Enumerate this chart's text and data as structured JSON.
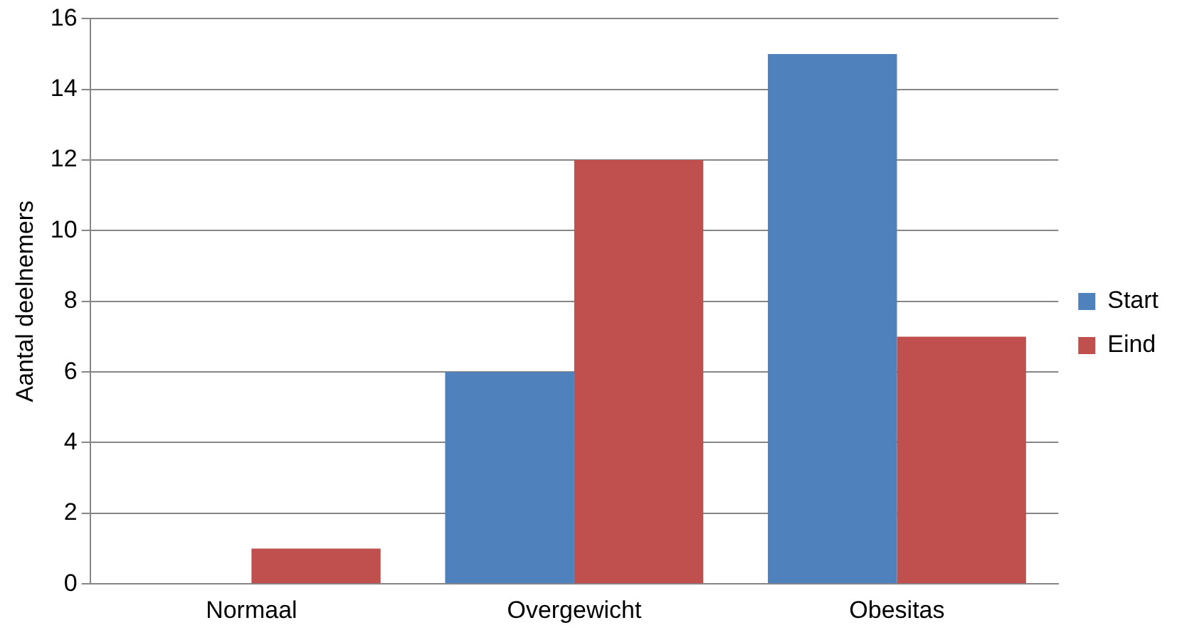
{
  "chart_data": {
    "type": "bar",
    "ylabel": "Aantal deelnemers",
    "categories": [
      "Normaal",
      "Overgewicht",
      "Obesitas"
    ],
    "series": [
      {
        "name": "Start",
        "color": "#4f81bd",
        "values": [
          0,
          6,
          15
        ]
      },
      {
        "name": "Eind",
        "color": "#c0504d",
        "values": [
          1,
          12,
          7
        ]
      }
    ],
    "ylim": [
      0,
      16
    ],
    "yticks": [
      0,
      2,
      4,
      6,
      8,
      10,
      12,
      14,
      16
    ],
    "grid": "y",
    "legend": "right"
  }
}
